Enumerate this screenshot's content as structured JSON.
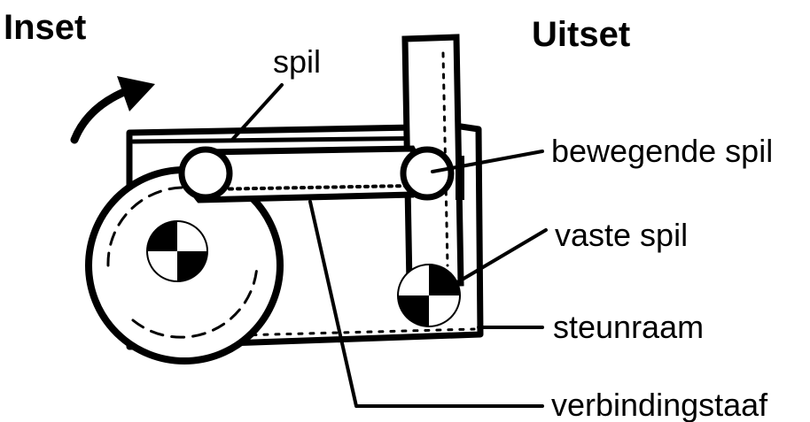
{
  "diagram": {
    "title_input": "Inset",
    "title_output": "Uitset",
    "labels": {
      "spil": "spil",
      "bewegende_spil": "bewegende spil",
      "vaste_spil": "vaste spil",
      "steunraam": "steunraam",
      "verbindingstaaf": "verbindingstaaf"
    },
    "colors": {
      "ink": "#000000",
      "paper": "#ffffff"
    },
    "icons": [
      "rotation-arrow-icon"
    ]
  }
}
